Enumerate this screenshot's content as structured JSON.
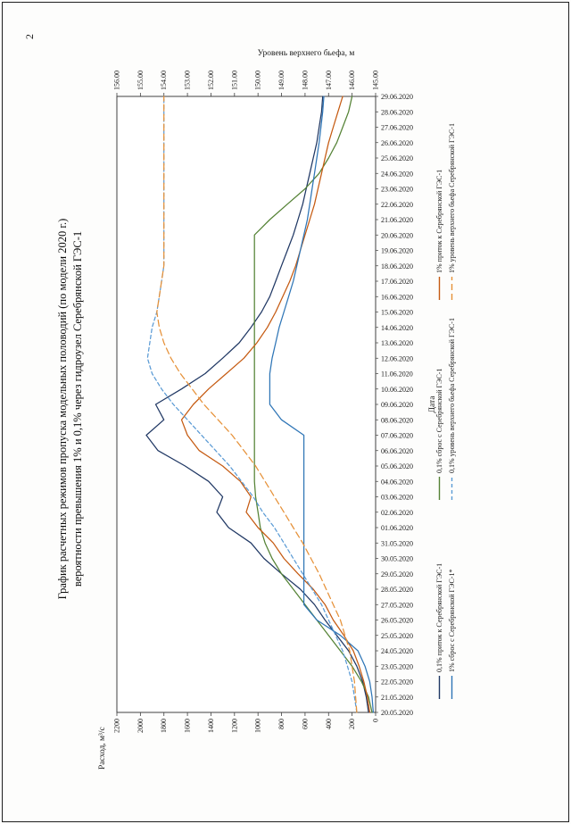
{
  "page": {
    "number": "2",
    "title_line1": "График расчетных режимов пропуска модельных половодий (по модели 2020 г.)",
    "title_line2": "вероятности превышения 1% и 0,1% через гидроузел Серебрянской ГЭС-1"
  },
  "chart_data": {
    "type": "line",
    "title": "График расчетных режимов пропуска модельных половодий (по модели 2020 г.) вероятности превышения 1% и 0,1% через гидроузел Серебрянской ГЭС-1",
    "xlabel": "Дата",
    "y_left_label": "Расход, м³/с",
    "y_right_label": "Уровень верхнего бьефа, м",
    "y_left_range": [
      0,
      2200
    ],
    "y_right_range": [
      145,
      156
    ],
    "y_left_ticks": [
      "2200",
      "2000",
      "1800",
      "1600",
      "1400",
      "1200",
      "1000",
      "800",
      "600",
      "400",
      "200",
      "0"
    ],
    "y_right_ticks": [
      "156.00",
      "155.00",
      "154.00",
      "153.00",
      "152.00",
      "151.00",
      "150.00",
      "149.00",
      "148.00",
      "147.00",
      "146.00",
      "145.00"
    ],
    "grid": false,
    "legend_position": "bottom",
    "x": [
      "20.05.2020",
      "21.05.2020",
      "22.05.2020",
      "23.05.2020",
      "24.05.2020",
      "25.05.2020",
      "26.05.2020",
      "27.05.2020",
      "28.05.2020",
      "29.05.2020",
      "30.05.2020",
      "31.05.2020",
      "01.06.2020",
      "02.06.2020",
      "03.06.2020",
      "04.06.2020",
      "05.06.2020",
      "06.06.2020",
      "07.06.2020",
      "08.06.2020",
      "09.06.2020",
      "10.06.2020",
      "11.06.2020",
      "12.06.2020",
      "13.06.2020",
      "14.06.2020",
      "15.06.2020",
      "16.06.2020",
      "17.06.2020",
      "18.06.2020",
      "19.06.2020",
      "20.06.2020",
      "21.06.2020",
      "22.06.2020",
      "23.06.2020",
      "24.06.2020",
      "25.06.2020",
      "26.06.2020",
      "27.06.2020",
      "28.06.2020",
      "29.06.2020"
    ],
    "series": [
      {
        "name": "0,1% приток к Серебрянской ГЭС-1",
        "axis": "left",
        "color": "#203864",
        "dash": "none",
        "values": [
          60,
          80,
          110,
          160,
          230,
          330,
          430,
          520,
          640,
          800,
          950,
          1060,
          1250,
          1350,
          1300,
          1420,
          1620,
          1850,
          1950,
          1800,
          1870,
          1650,
          1450,
          1300,
          1160,
          1060,
          970,
          900,
          850,
          800,
          750,
          700,
          660,
          620,
          590,
          560,
          530,
          500,
          480,
          460,
          450
        ]
      },
      {
        "name": "0,1% сброс с Серебрянской ГЭС-1",
        "axis": "left",
        "color": "#548235",
        "dash": "none",
        "values": [
          30,
          60,
          120,
          200,
          300,
          400,
          500,
          600,
          700,
          800,
          880,
          940,
          980,
          1000,
          1020,
          1030,
          1030,
          1030,
          1030,
          1030,
          1030,
          1030,
          1030,
          1030,
          1030,
          1030,
          1030,
          1030,
          1030,
          1030,
          1030,
          1030,
          900,
          750,
          600,
          480,
          400,
          330,
          280,
          230,
          200
        ]
      },
      {
        "name": "1% приток к Серебрянской ГЭС-1",
        "axis": "left",
        "color": "#c55a11",
        "dash": "none",
        "values": [
          50,
          70,
          100,
          140,
          190,
          270,
          360,
          430,
          530,
          660,
          780,
          870,
          1000,
          1100,
          1060,
          1150,
          1300,
          1500,
          1600,
          1650,
          1550,
          1420,
          1270,
          1120,
          1010,
          920,
          850,
          790,
          730,
          680,
          640,
          600,
          560,
          520,
          490,
          460,
          430,
          400,
          360,
          320,
          280
        ]
      },
      {
        "name": "1% сброс с Серебрянской ГЭС-1*",
        "axis": "left",
        "color": "#2e75b6",
        "dash": "none",
        "values": [
          20,
          30,
          50,
          90,
          150,
          300,
          500,
          610,
          610,
          610,
          610,
          610,
          610,
          610,
          610,
          610,
          610,
          610,
          610,
          800,
          900,
          900,
          900,
          880,
          850,
          820,
          780,
          740,
          700,
          670,
          640,
          610,
          580,
          560,
          540,
          520,
          500,
          480,
          465,
          450,
          440
        ]
      },
      {
        "name": "0,1% уровень верхнего бьефа Серебрянской ГЭС-1",
        "axis": "right",
        "color": "#5b9bd5",
        "dash": "4 3",
        "values": [
          145.8,
          145.9,
          146.0,
          146.2,
          146.4,
          146.7,
          147.0,
          147.3,
          147.7,
          148.1,
          148.5,
          148.9,
          149.3,
          149.8,
          150.2,
          150.7,
          151.2,
          151.8,
          152.4,
          153.0,
          153.6,
          154.1,
          154.5,
          154.7,
          154.6,
          154.5,
          154.3,
          154.2,
          154.1,
          154.0,
          154.0,
          154.0,
          154.0,
          154.0,
          154.0,
          154.0,
          154.0,
          154.0,
          154.0,
          154.0,
          154.0
        ]
      },
      {
        "name": "1% уровень верхнего бьефа Серебрянской ГЭС-1",
        "axis": "right",
        "color": "#e69138",
        "dash": "7 4",
        "values": [
          145.8,
          145.85,
          145.9,
          146.0,
          146.1,
          146.3,
          146.5,
          146.8,
          147.1,
          147.4,
          147.75,
          148.1,
          148.5,
          148.9,
          149.3,
          149.7,
          150.1,
          150.6,
          151.1,
          151.7,
          152.3,
          152.8,
          153.3,
          153.7,
          154.0,
          154.2,
          154.3,
          154.2,
          154.1,
          154.0,
          154.0,
          154.0,
          154.0,
          154.0,
          154.0,
          154.0,
          154.0,
          154.0,
          154.0,
          154.0,
          154.0
        ]
      }
    ]
  }
}
